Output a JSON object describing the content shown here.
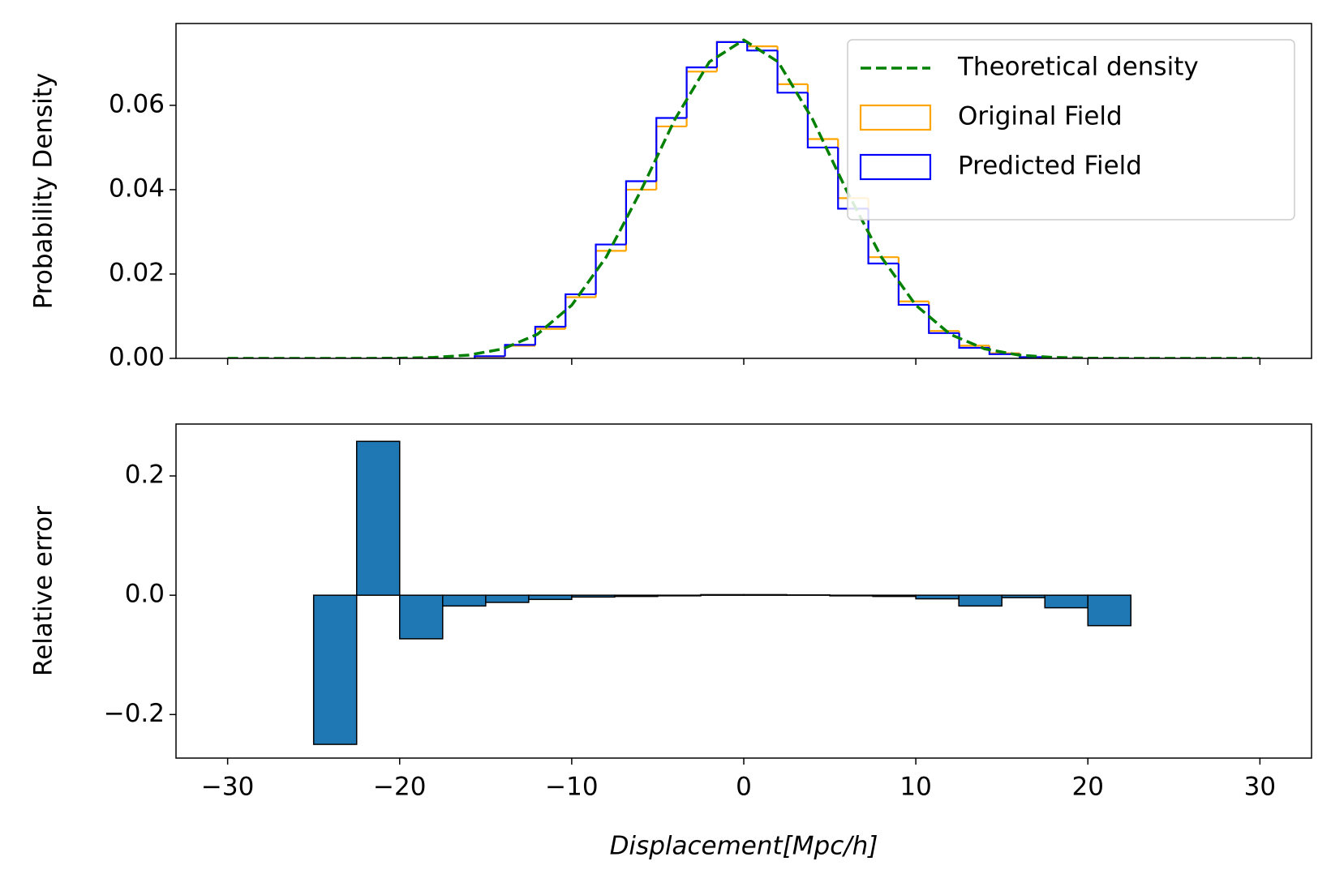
{
  "chart_data": [
    {
      "type": "histogram",
      "ylabel": "Probability Density",
      "xlim": [
        -33,
        33
      ],
      "xticks": [
        -30,
        -20,
        -10,
        0,
        10,
        20,
        30
      ],
      "ylim": [
        0,
        0.0794
      ],
      "yticks": [
        {
          "value": 0,
          "label": "0.00"
        },
        {
          "value": 0.02,
          "label": "0.02"
        },
        {
          "value": 0.04,
          "label": "0.04"
        },
        {
          "value": 0.06,
          "label": "0.06"
        }
      ],
      "legend": "upper right",
      "line": {
        "name": "Theoretical density",
        "color": "#008000",
        "x": [
          -30,
          -28,
          -26,
          -24,
          -22,
          -20,
          -18,
          -16,
          -14,
          -12,
          -10,
          -8,
          -6,
          -4,
          -2,
          0,
          2,
          4,
          6,
          8,
          10,
          12,
          14,
          16,
          18,
          20,
          22,
          24,
          26,
          28,
          30
        ],
        "values": [
          0,
          0,
          0,
          0,
          1e-05,
          6e-05,
          0.00023,
          0.00077,
          0.00225,
          0.0057,
          0.0126,
          0.024,
          0.0396,
          0.0567,
          0.0703,
          0.0755,
          0.0703,
          0.0567,
          0.0396,
          0.024,
          0.0126,
          0.0057,
          0.00225,
          0.00077,
          0.00023,
          6e-05,
          1e-05,
          0,
          0,
          0,
          0
        ]
      },
      "bins": [
        -15.64,
        -13.88,
        -12.12,
        -10.36,
        -8.6,
        -6.84,
        -5.08,
        -3.32,
        -1.56,
        0.2,
        1.96,
        3.72,
        5.48,
        7.24,
        9.0,
        10.76,
        12.52,
        14.28,
        16.04,
        17.8
      ],
      "series": [
        {
          "name": "Original Field",
          "color": "#ffa500",
          "values": [
            0.0004,
            0.003,
            0.007,
            0.0145,
            0.0255,
            0.04,
            0.055,
            0.068,
            0.075,
            0.074,
            0.065,
            0.052,
            0.038,
            0.024,
            0.0135,
            0.0065,
            0.003,
            0.0012,
            0.0003
          ]
        },
        {
          "name": "Predicted Field",
          "color": "#0000ff",
          "values": [
            0.0005,
            0.0032,
            0.0075,
            0.0152,
            0.027,
            0.042,
            0.057,
            0.069,
            0.075,
            0.073,
            0.063,
            0.05,
            0.0355,
            0.0225,
            0.0127,
            0.006,
            0.0025,
            0.001,
            0.0003
          ]
        }
      ]
    },
    {
      "type": "histogram",
      "ylabel": "Relative error",
      "xlabel": "Displacement[Mpc/h]",
      "xlim": [
        -33,
        33
      ],
      "xticks": [
        {
          "value": -30,
          "label": "−30"
        },
        {
          "value": -20,
          "label": "−20"
        },
        {
          "value": -10,
          "label": "−10"
        },
        0,
        10,
        20,
        30
      ],
      "ylim": [
        -0.273,
        0.287
      ],
      "yticks": [
        {
          "value": -0.2,
          "label": "−0.2"
        },
        {
          "value": 0,
          "label": "0.0"
        },
        0.2
      ],
      "bins": [
        -25,
        -22.5,
        -20,
        -17.5,
        -15,
        -12.5,
        -10,
        -7.5,
        -5,
        -2.5,
        0,
        2.5,
        5,
        7.5,
        10,
        12.5,
        15,
        17.5,
        20,
        22.5
      ],
      "color": "#1f77b4",
      "edgecolor": "#000000",
      "values": [
        -0.25,
        0.258,
        -0.073,
        -0.018,
        -0.012,
        -0.007,
        -0.003,
        -0.002,
        -0.001,
        0.001,
        0.001,
        0.0005,
        -0.001,
        -0.002,
        -0.006,
        -0.018,
        -0.004,
        -0.021,
        -0.051
      ]
    }
  ]
}
